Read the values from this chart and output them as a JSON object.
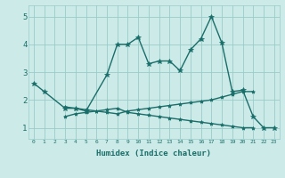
{
  "xlabel": "Humidex (Indice chaleur)",
  "bg_color": "#cceae7",
  "grid_color": "#99ccc8",
  "line_color": "#1a6e6a",
  "xlim": [
    -0.5,
    23.5
  ],
  "ylim": [
    0.6,
    5.4
  ],
  "yticks": [
    1,
    2,
    3,
    4,
    5
  ],
  "xticks": [
    0,
    1,
    2,
    3,
    4,
    5,
    6,
    7,
    8,
    9,
    10,
    11,
    12,
    13,
    14,
    15,
    16,
    17,
    18,
    19,
    20,
    21,
    22,
    23
  ],
  "line1_x": [
    0,
    1,
    3,
    4,
    5,
    7,
    8,
    9,
    10,
    11,
    12,
    13,
    14,
    15,
    16,
    17,
    18,
    19,
    20,
    21,
    22,
    23
  ],
  "line1_y": [
    2.6,
    2.3,
    1.7,
    1.7,
    1.6,
    2.9,
    4.0,
    4.0,
    4.25,
    3.3,
    3.4,
    3.4,
    3.05,
    3.8,
    4.2,
    5.0,
    4.05,
    2.3,
    2.35,
    1.4,
    1.0,
    1.0
  ],
  "line2_x": [
    3,
    4,
    5,
    6,
    7,
    8,
    9,
    10,
    11,
    12,
    13,
    14,
    15,
    16,
    17,
    18,
    19,
    20,
    21
  ],
  "line2_y": [
    1.75,
    1.7,
    1.65,
    1.6,
    1.55,
    1.5,
    1.6,
    1.65,
    1.7,
    1.75,
    1.8,
    1.85,
    1.9,
    1.95,
    2.0,
    2.1,
    2.2,
    2.3,
    2.3
  ],
  "line3_x": [
    3,
    4,
    5,
    6,
    7,
    8,
    9,
    10,
    11,
    12,
    13,
    14,
    15,
    16,
    17,
    18,
    19,
    20,
    21
  ],
  "line3_y": [
    1.4,
    1.5,
    1.55,
    1.6,
    1.65,
    1.7,
    1.55,
    1.5,
    1.45,
    1.4,
    1.35,
    1.3,
    1.25,
    1.2,
    1.15,
    1.1,
    1.05,
    1.0,
    1.0
  ]
}
